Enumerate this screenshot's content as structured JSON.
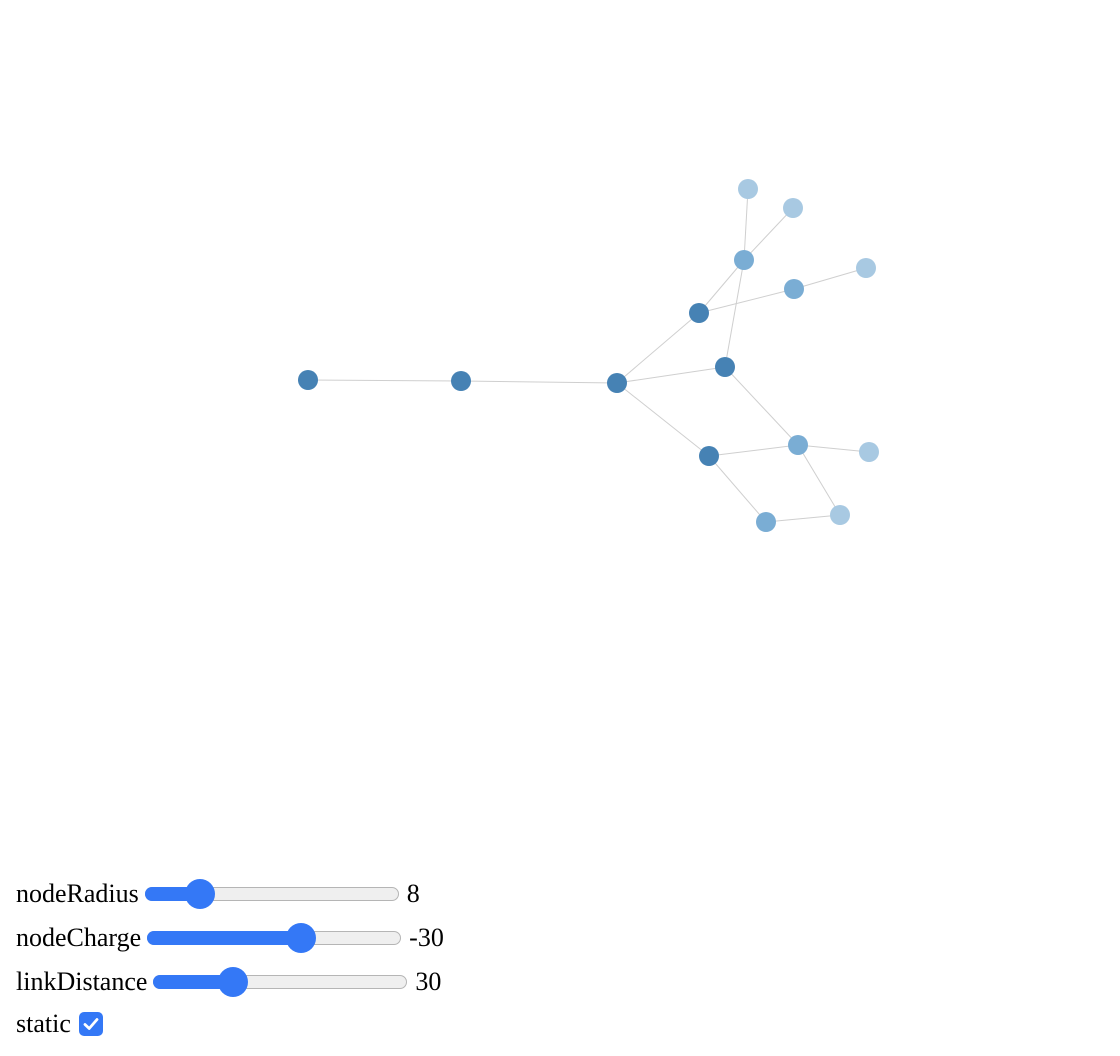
{
  "graph": {
    "colors": {
      "link": "#cfcfcf",
      "depth0": "#4682b4",
      "depth1": "#7aadd4",
      "depth2": "#a8c9e2"
    },
    "nodes": [
      {
        "id": "n1",
        "depth": 0
      },
      {
        "id": "n2",
        "depth": 0
      },
      {
        "id": "n3",
        "depth": 0
      },
      {
        "id": "n4",
        "depth": 0
      },
      {
        "id": "n5",
        "depth": 0
      },
      {
        "id": "n6",
        "depth": 0
      },
      {
        "id": "n7",
        "depth": 1
      },
      {
        "id": "n8",
        "depth": 1
      },
      {
        "id": "n9",
        "depth": 1
      },
      {
        "id": "n10",
        "depth": 1
      },
      {
        "id": "n11",
        "depth": 2
      },
      {
        "id": "n12",
        "depth": 2
      },
      {
        "id": "n13",
        "depth": 2
      },
      {
        "id": "n14",
        "depth": 2
      },
      {
        "id": "n15",
        "depth": 2
      }
    ],
    "links": [
      [
        "n1",
        "n2"
      ],
      [
        "n2",
        "n3"
      ],
      [
        "n3",
        "n4"
      ],
      [
        "n3",
        "n5"
      ],
      [
        "n3",
        "n6"
      ],
      [
        "n4",
        "n7"
      ],
      [
        "n4",
        "n8"
      ],
      [
        "n5",
        "n7"
      ],
      [
        "n5",
        "n10"
      ],
      [
        "n6",
        "n10"
      ],
      [
        "n6",
        "n9"
      ],
      [
        "n7",
        "n11"
      ],
      [
        "n7",
        "n12"
      ],
      [
        "n8",
        "n13"
      ],
      [
        "n10",
        "n14"
      ],
      [
        "n10",
        "n15"
      ],
      [
        "n9",
        "n15"
      ]
    ]
  },
  "controls": {
    "nodeRadius": {
      "label": "nodeRadius",
      "value": "8",
      "fraction": 0.18
    },
    "nodeCharge": {
      "label": "nodeCharge",
      "value": "-30",
      "fraction": 0.62
    },
    "linkDistance": {
      "label": "linkDistance",
      "value": "30",
      "fraction": 0.29
    },
    "static": {
      "label": "static",
      "checked": true
    }
  },
  "accent_color": "#3478f6"
}
